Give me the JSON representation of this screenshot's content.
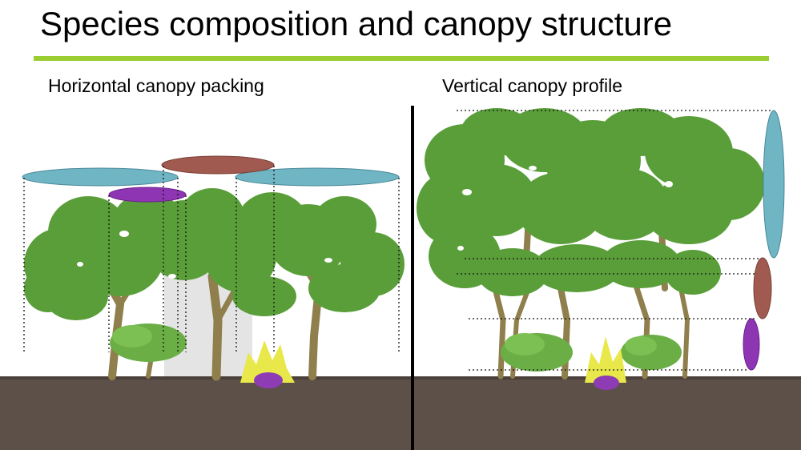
{
  "title": "Species composition and canopy structure",
  "panels": {
    "left": {
      "subtitle": "Horizontal canopy packing"
    },
    "right": {
      "subtitle": "Vertical canopy profile"
    }
  },
  "colors": {
    "title_rule": "#9acd32",
    "foliage": "#5a9e3a",
    "foliage_dark": "#3f7d2a",
    "ground": "#5c5049",
    "trunk": "#9a8a55",
    "teal_crown": "#6fb5c4",
    "brown_crown": "#a05a50",
    "purple_crown": "#8e35b4",
    "shrub_flower": "#e8e84a",
    "divider": "#000000"
  }
}
